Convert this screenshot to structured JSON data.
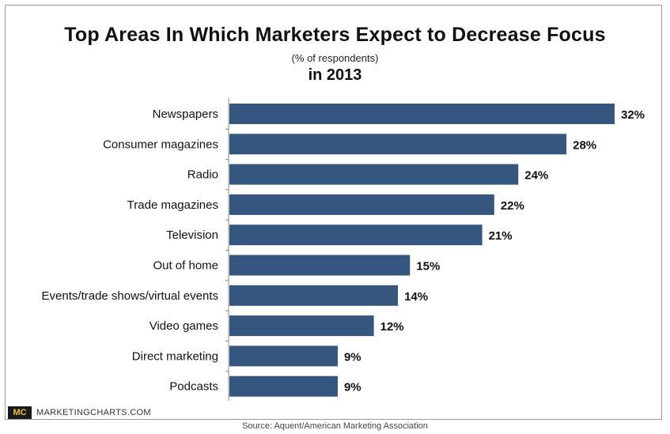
{
  "header": {
    "title": "Top Areas In Which Marketers Expect to Decrease Focus",
    "subtitle": "(% of respondents)",
    "subtitle2": "in 2013"
  },
  "branding": {
    "logo_text": "MC",
    "site": "MARKETINGCHARTS.COM"
  },
  "footer": {
    "source": "Source: Aquent/American Marketing Association"
  },
  "colors": {
    "bar": "#34567f",
    "axis": "#888888"
  },
  "chart_data": {
    "type": "bar",
    "orientation": "horizontal",
    "categories": [
      "Newspapers",
      "Consumer magazines",
      "Radio",
      "Trade magazines",
      "Television",
      "Out of home",
      "Events/trade shows/virtual events",
      "Video games",
      "Direct marketing",
      "Podcasts"
    ],
    "values": [
      32,
      28,
      24,
      22,
      21,
      15,
      14,
      12,
      9,
      9
    ],
    "data_labels": [
      "32%",
      "28%",
      "24%",
      "22%",
      "21%",
      "15%",
      "14%",
      "12%",
      "9%",
      "9%"
    ],
    "xlim": [
      0,
      32
    ],
    "grid": false,
    "legend": "none"
  }
}
